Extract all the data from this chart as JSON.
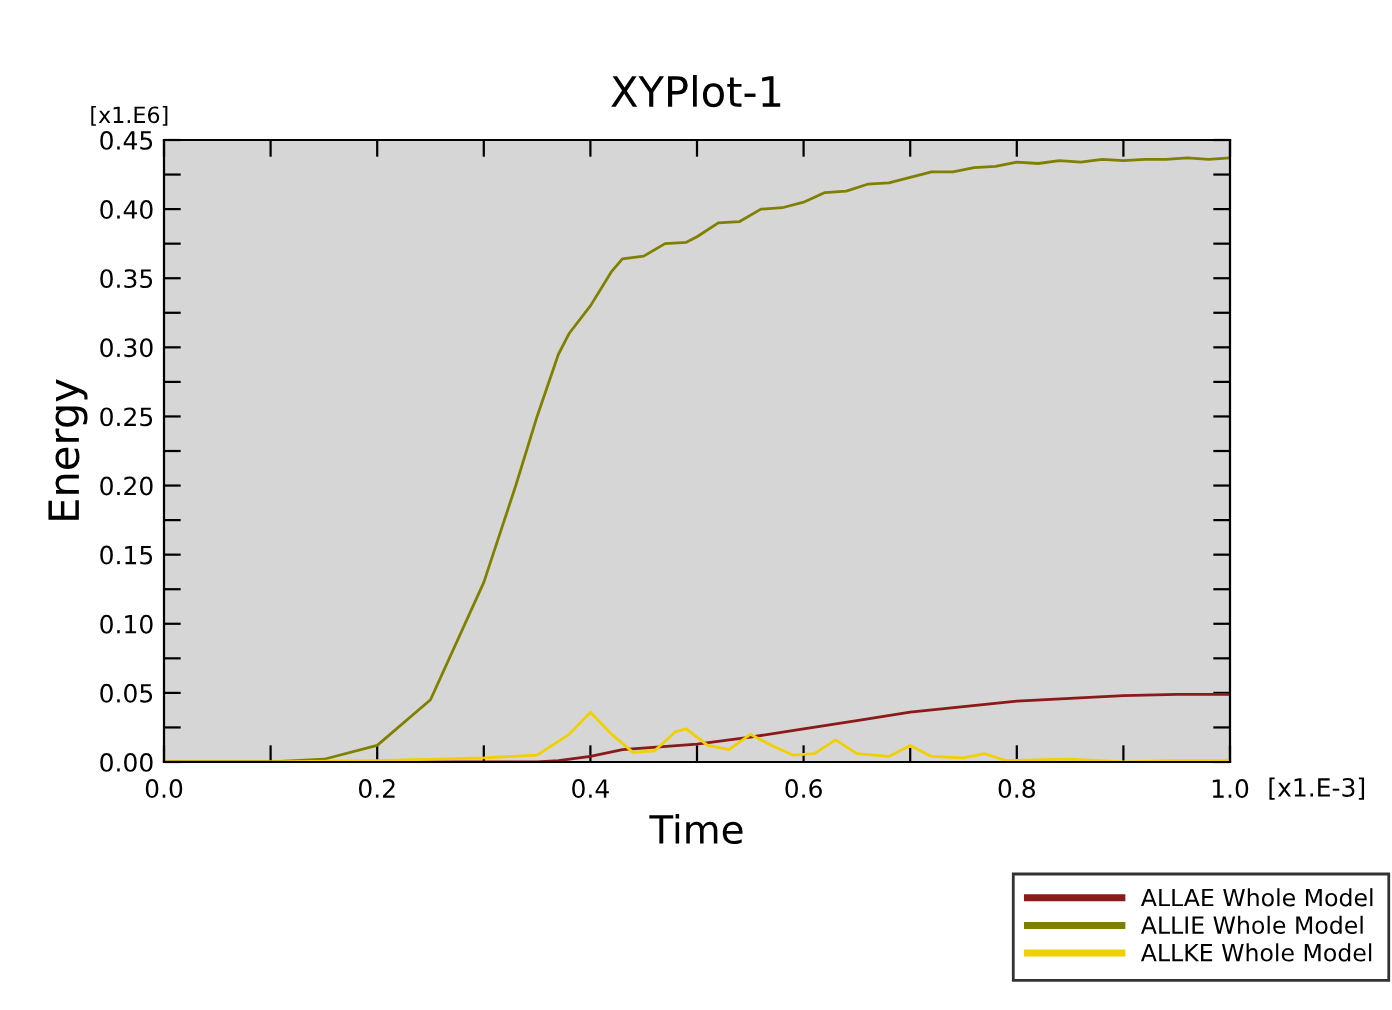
{
  "chart_data": {
    "type": "line",
    "title": "XYPlot-1",
    "xlabel": "Time",
    "ylabel": "Energy",
    "annotations": [
      "[x1.E6]",
      "[x1.E-3]"
    ],
    "xlim": [
      0,
      1
    ],
    "ylim": [
      0,
      0.45
    ],
    "xticks": [
      {
        "value": 0,
        "label": "0.0"
      },
      {
        "value": 0.1,
        "label": null
      },
      {
        "value": 0.2,
        "label": "0.2"
      },
      {
        "value": 0.3,
        "label": null
      },
      {
        "value": 0.4,
        "label": "0.4"
      },
      {
        "value": 0.5,
        "label": null
      },
      {
        "value": 0.6,
        "label": "0.6"
      },
      {
        "value": 0.7,
        "label": null
      },
      {
        "value": 0.8,
        "label": "0.8"
      },
      {
        "value": 0.9,
        "label": null
      },
      {
        "value": 1.0,
        "label": "1.0"
      }
    ],
    "yticks": [
      {
        "value": 0,
        "label": "0.00"
      },
      {
        "value": 0.025,
        "label": null
      },
      {
        "value": 0.05,
        "label": "0.05"
      },
      {
        "value": 0.075,
        "label": null
      },
      {
        "value": 0.1,
        "label": "0.10"
      },
      {
        "value": 0.125,
        "label": null
      },
      {
        "value": 0.15,
        "label": "0.15"
      },
      {
        "value": 0.175,
        "label": null
      },
      {
        "value": 0.2,
        "label": "0.20"
      },
      {
        "value": 0.225,
        "label": null
      },
      {
        "value": 0.25,
        "label": "0.25"
      },
      {
        "value": 0.275,
        "label": null
      },
      {
        "value": 0.3,
        "label": "0.30"
      },
      {
        "value": 0.325,
        "label": null
      },
      {
        "value": 0.35,
        "label": "0.35"
      },
      {
        "value": 0.375,
        "label": null
      },
      {
        "value": 0.4,
        "label": "0.40"
      },
      {
        "value": 0.425,
        "label": null
      },
      {
        "value": 0.45,
        "label": "0.45"
      }
    ],
    "legend": "bottom right",
    "grid": false,
    "marker": "none",
    "line_style": "solid",
    "series": [
      {
        "name": "ALLAE Whole Model",
        "color": "#8b1a1a",
        "x": [
          0,
          0.35,
          0.37,
          0.4,
          0.43,
          0.5,
          0.55,
          0.6,
          0.65,
          0.7,
          0.75,
          0.8,
          0.85,
          0.9,
          0.95,
          1.0
        ],
        "values": [
          0,
          0,
          0.001,
          0.004,
          0.009,
          0.013,
          0.018,
          0.024,
          0.03,
          0.036,
          0.04,
          0.044,
          0.046,
          0.048,
          0.049,
          0.049
        ]
      },
      {
        "name": "ALLIE Whole Model",
        "color": "#808000",
        "x": [
          0,
          0.1,
          0.15,
          0.2,
          0.25,
          0.3,
          0.33,
          0.35,
          0.37,
          0.38,
          0.4,
          0.42,
          0.43,
          0.45,
          0.47,
          0.49,
          0.5,
          0.52,
          0.54,
          0.56,
          0.58,
          0.6,
          0.62,
          0.64,
          0.66,
          0.68,
          0.7,
          0.72,
          0.74,
          0.76,
          0.78,
          0.8,
          0.82,
          0.84,
          0.86,
          0.88,
          0.9,
          0.92,
          0.94,
          0.96,
          0.98,
          1.0
        ],
        "values": [
          0,
          0,
          0.002,
          0.012,
          0.045,
          0.13,
          0.2,
          0.25,
          0.295,
          0.31,
          0.33,
          0.355,
          0.364,
          0.366,
          0.375,
          0.376,
          0.38,
          0.39,
          0.391,
          0.4,
          0.401,
          0.405,
          0.412,
          0.413,
          0.418,
          0.419,
          0.423,
          0.427,
          0.427,
          0.43,
          0.431,
          0.434,
          0.433,
          0.435,
          0.434,
          0.436,
          0.435,
          0.436,
          0.436,
          0.437,
          0.436,
          0.437
        ]
      },
      {
        "name": "ALLKE Whole Model",
        "color": "#f0d000",
        "x": [
          0,
          0.1,
          0.2,
          0.3,
          0.35,
          0.38,
          0.4,
          0.42,
          0.44,
          0.46,
          0.48,
          0.49,
          0.51,
          0.53,
          0.55,
          0.57,
          0.59,
          0.61,
          0.63,
          0.65,
          0.68,
          0.7,
          0.72,
          0.75,
          0.77,
          0.79,
          0.85,
          0.9,
          0.95,
          1.0
        ],
        "values": [
          0,
          0,
          0.001,
          0.003,
          0.005,
          0.02,
          0.036,
          0.02,
          0.007,
          0.008,
          0.022,
          0.024,
          0.012,
          0.009,
          0.02,
          0.012,
          0.005,
          0.006,
          0.016,
          0.006,
          0.004,
          0.012,
          0.004,
          0.003,
          0.006,
          0.001,
          0.002,
          0.0,
          0.001,
          0.001
        ]
      }
    ]
  }
}
